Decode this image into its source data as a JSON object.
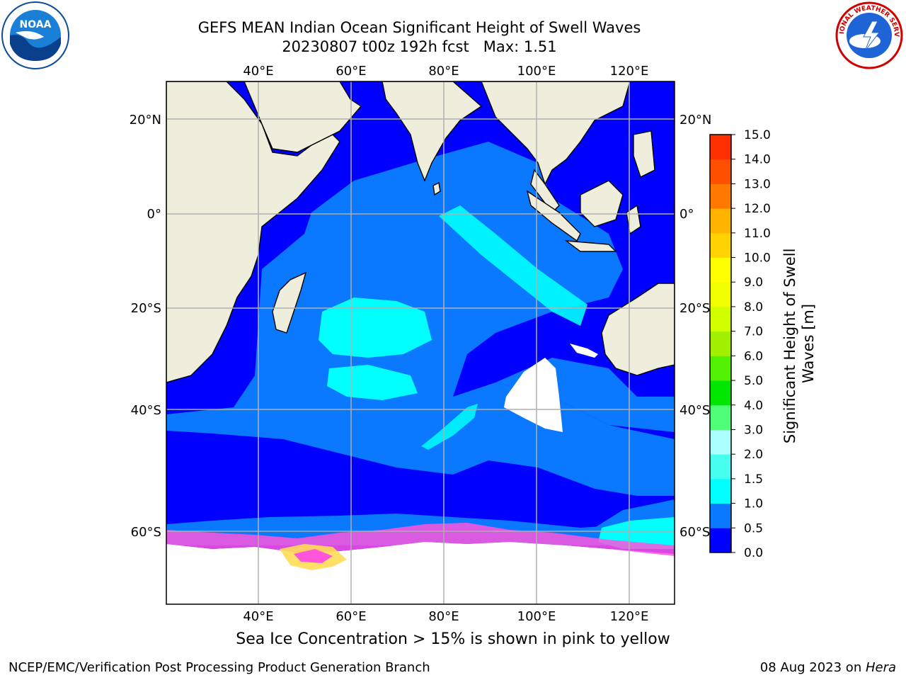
{
  "title": {
    "line1": "GEFS MEAN Indian Ocean Significant Height of Swell Waves",
    "line2": "20230807 t00z 192h fcst   Max: 1.51"
  },
  "map": {
    "projection": "cylindrical",
    "lon_range": [
      20,
      130
    ],
    "lat_range": [
      -72,
      28
    ],
    "lon_ticks": [
      "40°E",
      "60°E",
      "80°E",
      "100°E",
      "120°E"
    ],
    "lat_ticks": [
      "20°N",
      "0°",
      "20°S",
      "40°S",
      "60°S"
    ],
    "colors": {
      "land": "#efeedc",
      "coast": "#000000",
      "grid": "#b0b0b0",
      "no_data": "#ffffff",
      "ice_pink": "#ff55dd",
      "ice_yellow": "#ffdd55"
    }
  },
  "colorbar": {
    "label_line1": "Significant Height of Swell",
    "label_line2": "Waves [m]",
    "ticks": [
      "0.0",
      "0.5",
      "1.0",
      "1.5",
      "2.0",
      "3.0",
      "4.0",
      "5.0",
      "6.0",
      "7.0",
      "8.0",
      "9.0",
      "10.0",
      "11.0",
      "12.0",
      "13.0",
      "14.0",
      "15.0"
    ],
    "colors": [
      "#0000ff",
      "#0a78ff",
      "#00ffff",
      "#46ffee",
      "#aaffff",
      "#50ff78",
      "#00e600",
      "#50f000",
      "#a0f000",
      "#d2ff00",
      "#f0ff00",
      "#ffff00",
      "#ffd200",
      "#ffb400",
      "#ff7800",
      "#ff5000",
      "#ff3000",
      "#ff0000"
    ]
  },
  "logos": {
    "left": {
      "name": "noaa-logo",
      "text": "NOAA"
    },
    "right": {
      "name": "nws-logo",
      "text": "NATIONAL WEATHER SERVICE"
    }
  },
  "ice_note": "Sea Ice Concentration > 15% is shown in pink to yellow",
  "footer": {
    "left": "NCEP/EMC/Verification Post Processing Product Generation Branch",
    "date": "08 Aug 2023 on ",
    "host": "Hera"
  }
}
